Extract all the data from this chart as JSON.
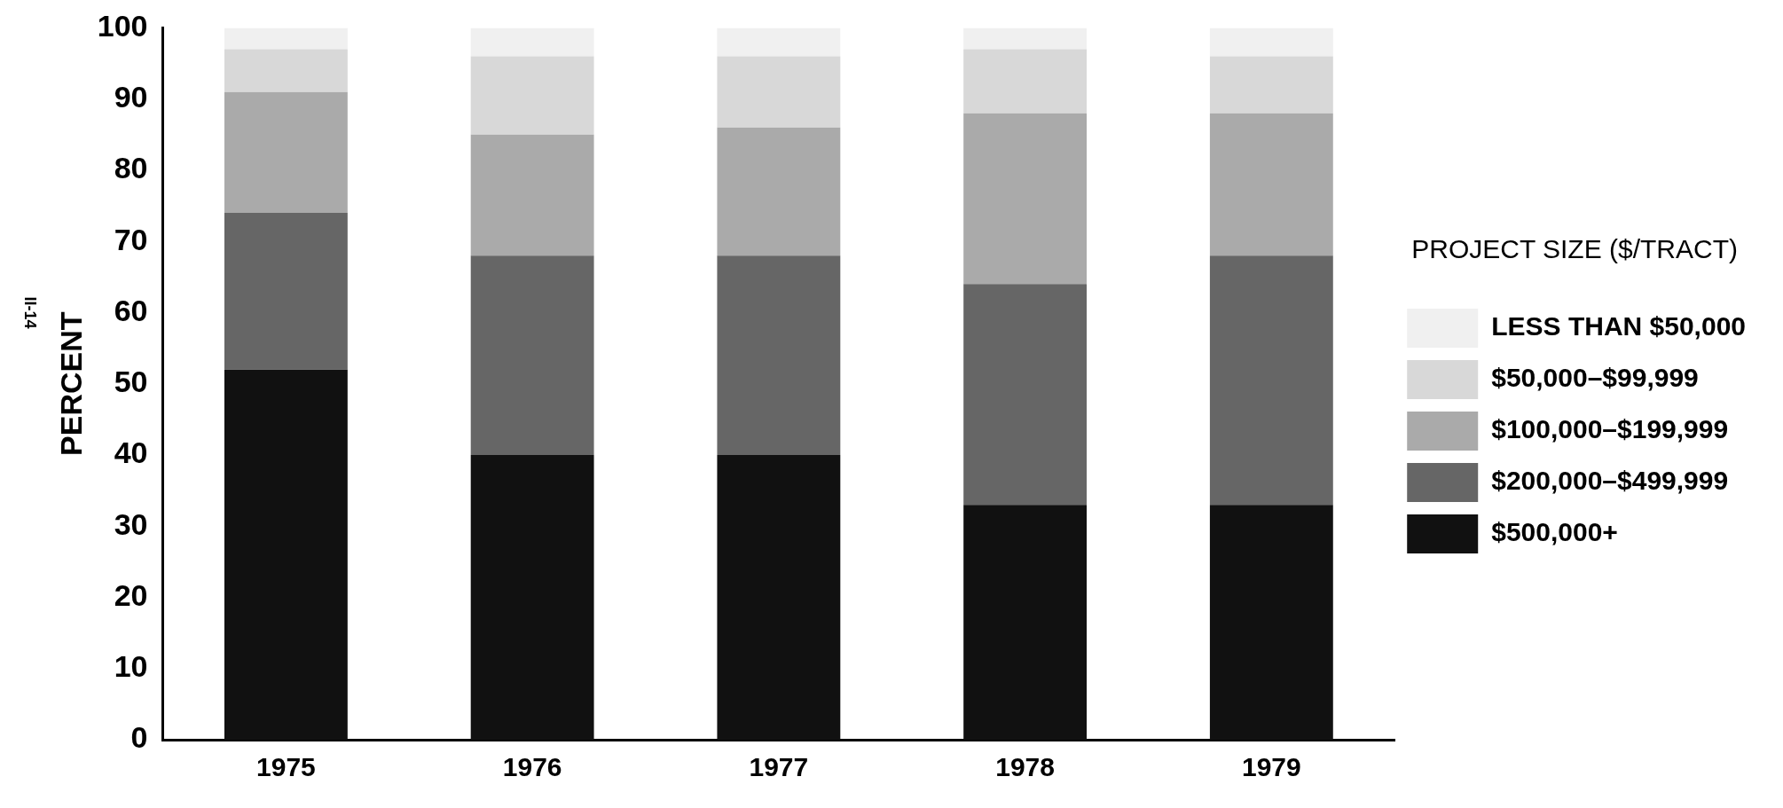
{
  "chart_data": {
    "type": "bar",
    "stacked": true,
    "ylabel": "PERCENT",
    "legend_title": "PROJECT SIZE ($/TRACT)",
    "legend": "right",
    "categories": [
      "1975",
      "1976",
      "1977",
      "1978",
      "1979"
    ],
    "series": [
      {
        "name": "$500,000+",
        "color": "#111111",
        "values": [
          52,
          40,
          40,
          33,
          33
        ]
      },
      {
        "name": "$200,000–$499,999",
        "color": "#666666",
        "values": [
          22,
          28,
          28,
          31,
          35
        ]
      },
      {
        "name": "$100,000–$199,999",
        "color": "#aaaaaa",
        "values": [
          17,
          17,
          18,
          24,
          20
        ]
      },
      {
        "name": "$50,000–$99,999",
        "color": "#d8d8d8",
        "values": [
          6,
          11,
          10,
          9,
          8
        ]
      },
      {
        "name": "LESS THAN $50,000",
        "color": "#f0f0f0",
        "values": [
          3,
          4,
          4,
          3,
          4
        ]
      }
    ],
    "ylim": [
      0,
      100
    ],
    "yticks": [
      0,
      10,
      20,
      30,
      40,
      50,
      60,
      70,
      80,
      90,
      100
    ],
    "grid": false,
    "annotations": [
      "II-14"
    ]
  }
}
